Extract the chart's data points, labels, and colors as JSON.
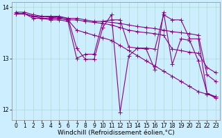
{
  "background_color": "#cceeff",
  "grid_color": "#aaddcc",
  "line_color": "#880088",
  "marker": "+",
  "markersize": 4,
  "linewidth": 0.8,
  "xlabel": "Windchill (Refroidissement éolien,°C)",
  "xlabel_fontsize": 6.5,
  "xlim": [
    -0.5,
    23.5
  ],
  "ylim": [
    11.8,
    14.1
  ],
  "yticks": [
    12,
    13,
    14
  ],
  "xticks": [
    0,
    1,
    2,
    3,
    4,
    5,
    6,
    7,
    8,
    9,
    10,
    11,
    12,
    13,
    14,
    15,
    16,
    17,
    18,
    19,
    20,
    21,
    22,
    23
  ],
  "tick_fontsize": 5.5,
  "series": [
    {
      "x": [
        0,
        1,
        2,
        3,
        4,
        5,
        6,
        7,
        8,
        9,
        10,
        11,
        12,
        13,
        14,
        15,
        16,
        17,
        18,
        19,
        20,
        21,
        22,
        23
      ],
      "y": [
        13.9,
        13.9,
        13.85,
        13.82,
        13.8,
        13.78,
        13.75,
        13.55,
        13.5,
        13.45,
        13.4,
        13.35,
        13.25,
        13.15,
        13.05,
        12.95,
        12.85,
        12.75,
        12.65,
        12.55,
        12.45,
        12.35,
        12.3,
        12.25
      ]
    },
    {
      "x": [
        0,
        1,
        2,
        3,
        4,
        5,
        6,
        7,
        8,
        9,
        10,
        11,
        12,
        13,
        14,
        15,
        16,
        17,
        18,
        19,
        20,
        21,
        22,
        23
      ],
      "y": [
        13.87,
        13.87,
        13.82,
        13.82,
        13.82,
        13.8,
        13.78,
        13.2,
        12.98,
        12.98,
        13.6,
        13.85,
        11.95,
        13.05,
        13.2,
        13.18,
        12.78,
        13.9,
        12.88,
        13.38,
        13.35,
        12.95,
        12.32,
        12.25
      ]
    },
    {
      "x": [
        0,
        1,
        2,
        3,
        4,
        5,
        6,
        7,
        8,
        9,
        10,
        11,
        12,
        13,
        14,
        15,
        16,
        17,
        18,
        19,
        20,
        21,
        22,
        23
      ],
      "y": [
        13.87,
        13.87,
        13.82,
        13.82,
        13.82,
        13.82,
        13.78,
        13.78,
        13.75,
        13.72,
        13.72,
        13.7,
        13.68,
        13.65,
        13.62,
        13.6,
        13.58,
        13.55,
        13.52,
        13.5,
        13.48,
        13.45,
        12.68,
        12.55
      ]
    },
    {
      "x": [
        0,
        1,
        2,
        3,
        4,
        5,
        6,
        7,
        8,
        9,
        10,
        11,
        12,
        13,
        14,
        15,
        16,
        17,
        18,
        19,
        20,
        21,
        22,
        23
      ],
      "y": [
        13.87,
        13.87,
        13.82,
        13.78,
        13.78,
        13.78,
        13.75,
        13.75,
        13.72,
        13.7,
        13.68,
        13.65,
        13.6,
        13.55,
        13.52,
        13.5,
        13.48,
        13.45,
        13.18,
        13.15,
        13.12,
        13.1,
        12.82,
        12.72
      ]
    },
    {
      "x": [
        0,
        1,
        2,
        3,
        4,
        5,
        6,
        7,
        8,
        9,
        10,
        11,
        12,
        13,
        14,
        15,
        16,
        17,
        18,
        19,
        20,
        21,
        22,
        23
      ],
      "y": [
        13.87,
        13.87,
        13.78,
        13.78,
        13.75,
        13.75,
        13.72,
        13.0,
        13.08,
        13.08,
        13.72,
        13.75,
        13.75,
        13.22,
        13.2,
        13.2,
        13.18,
        13.85,
        13.75,
        13.75,
        13.38,
        13.38,
        12.32,
        12.22
      ]
    }
  ]
}
